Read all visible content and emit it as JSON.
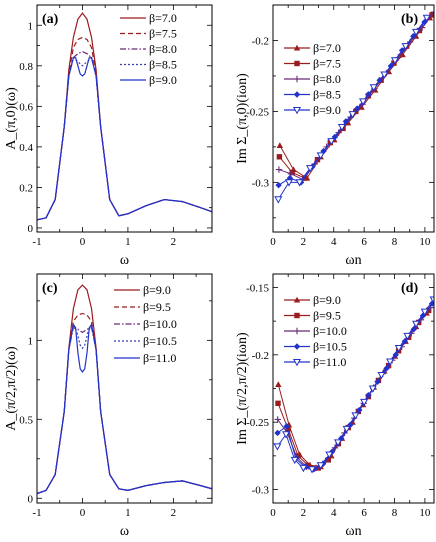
{
  "chart_data": [
    {
      "panel": "(a)",
      "type": "line",
      "xlabel": "ω",
      "ylabel": "A_(π,0)(ω)",
      "xlim": [
        -1,
        2.85
      ],
      "ylim": [
        -0.02,
        1.1
      ],
      "xticks": [
        -1,
        0,
        1,
        2
      ],
      "xtick_labels": [
        "-1",
        "0",
        "1",
        "2"
      ],
      "yticks": [
        0,
        0.2,
        0.4,
        0.6,
        0.8,
        1
      ],
      "ytick_labels": [
        "0",
        "0.2",
        "0.4",
        "0.6",
        "0.8",
        "1"
      ],
      "legend_position": "top-right",
      "series": [
        {
          "name": "β=7.0",
          "color": "#9b1c1c",
          "dash": "solid",
          "x": [
            -1,
            -0.8,
            -0.6,
            -0.4,
            -0.3,
            -0.2,
            -0.1,
            0,
            0.1,
            0.2,
            0.3,
            0.4,
            0.6,
            0.8,
            1,
            1.4,
            1.8,
            2.2,
            2.6,
            2.85
          ],
          "y": [
            0.04,
            0.05,
            0.14,
            0.5,
            0.78,
            0.94,
            1.03,
            1.06,
            1.03,
            0.94,
            0.78,
            0.5,
            0.14,
            0.06,
            0.07,
            0.11,
            0.14,
            0.13,
            0.1,
            0.08
          ]
        },
        {
          "name": "β=7.5",
          "color": "#9b1c1c",
          "dash": "dashed",
          "x": [
            -1,
            -0.8,
            -0.6,
            -0.4,
            -0.3,
            -0.2,
            -0.1,
            0,
            0.1,
            0.2,
            0.3,
            0.4,
            0.6,
            0.8,
            1,
            1.4,
            1.8,
            2.2,
            2.6,
            2.85
          ],
          "y": [
            0.04,
            0.05,
            0.14,
            0.5,
            0.76,
            0.89,
            0.93,
            0.94,
            0.93,
            0.89,
            0.76,
            0.5,
            0.14,
            0.06,
            0.07,
            0.11,
            0.14,
            0.13,
            0.1,
            0.08
          ]
        },
        {
          "name": "β=8.0",
          "color": "#6b2a78",
          "dash": "dashdot",
          "x": [
            -1,
            -0.8,
            -0.6,
            -0.4,
            -0.3,
            -0.2,
            -0.1,
            0,
            0.1,
            0.2,
            0.3,
            0.4,
            0.6,
            0.8,
            1,
            1.4,
            1.8,
            2.2,
            2.6,
            2.85
          ],
          "y": [
            0.04,
            0.05,
            0.14,
            0.5,
            0.75,
            0.84,
            0.86,
            0.87,
            0.86,
            0.84,
            0.75,
            0.5,
            0.14,
            0.06,
            0.07,
            0.11,
            0.14,
            0.13,
            0.1,
            0.08
          ]
        },
        {
          "name": "β=8.5",
          "color": "#3a3fb0",
          "dash": "dotted",
          "x": [
            -1,
            -0.8,
            -0.6,
            -0.4,
            -0.3,
            -0.2,
            -0.1,
            0,
            0.1,
            0.2,
            0.3,
            0.4,
            0.6,
            0.8,
            1,
            1.4,
            1.8,
            2.2,
            2.6,
            2.85
          ],
          "y": [
            0.04,
            0.05,
            0.14,
            0.5,
            0.75,
            0.84,
            0.82,
            0.8,
            0.82,
            0.84,
            0.75,
            0.5,
            0.14,
            0.06,
            0.07,
            0.11,
            0.14,
            0.13,
            0.1,
            0.08
          ]
        },
        {
          "name": "β=9.0",
          "color": "#2233cc",
          "dash": "solid",
          "x": [
            -1,
            -0.8,
            -0.6,
            -0.4,
            -0.3,
            -0.2,
            -0.15,
            -0.1,
            -0.05,
            0,
            0.05,
            0.1,
            0.15,
            0.2,
            0.3,
            0.4,
            0.6,
            0.8,
            1,
            1.4,
            1.8,
            2.2,
            2.6,
            2.85
          ],
          "y": [
            0.04,
            0.05,
            0.14,
            0.5,
            0.75,
            0.84,
            0.84,
            0.8,
            0.76,
            0.75,
            0.76,
            0.8,
            0.84,
            0.84,
            0.75,
            0.5,
            0.14,
            0.06,
            0.07,
            0.11,
            0.14,
            0.13,
            0.1,
            0.08
          ]
        }
      ]
    },
    {
      "panel": "(b)",
      "type": "line",
      "xlabel": "ωn",
      "ylabel": "Im Σ_(π,0)(iωn)",
      "xlim": [
        0,
        10.6
      ],
      "ylim": [
        -0.335,
        -0.175
      ],
      "xticks": [
        0,
        2,
        4,
        6,
        8,
        10
      ],
      "xtick_labels": [
        "0",
        "2",
        "4",
        "6",
        "8",
        "10"
      ],
      "yticks": [
        -0.3,
        -0.25,
        -0.2
      ],
      "ytick_labels": [
        "-0.3",
        "-0.25",
        "-0.2"
      ],
      "legend_position": "top-left",
      "series": [
        {
          "name": "β=7.0",
          "color": "#9b1c1c",
          "marker": "triangle-up",
          "x": [
            0.45,
            1.35,
            2.24,
            3.14,
            4.04,
            4.94,
            5.83,
            6.73,
            7.63,
            8.53,
            9.42,
            10.32
          ],
          "y": [
            -0.274,
            -0.291,
            -0.297,
            -0.282,
            -0.27,
            -0.258,
            -0.247,
            -0.235,
            -0.222,
            -0.21,
            -0.197,
            -0.184
          ]
        },
        {
          "name": "β=7.5",
          "color": "#9b1c1c",
          "marker": "square",
          "x": [
            0.42,
            1.26,
            2.09,
            2.93,
            3.77,
            4.61,
            5.45,
            6.28,
            7.12,
            7.96,
            8.8,
            9.64,
            10.47
          ],
          "y": [
            -0.282,
            -0.293,
            -0.297,
            -0.284,
            -0.272,
            -0.262,
            -0.25,
            -0.239,
            -0.228,
            -0.216,
            -0.204,
            -0.193,
            -0.182
          ]
        },
        {
          "name": "β=8.0",
          "color": "#6b2a78",
          "marker": "plus",
          "x": [
            0.39,
            1.18,
            1.96,
            2.75,
            3.53,
            4.32,
            5.11,
            5.89,
            6.68,
            7.46,
            8.25,
            9.03,
            9.82,
            10.6
          ],
          "y": [
            -0.291,
            -0.294,
            -0.298,
            -0.287,
            -0.275,
            -0.265,
            -0.254,
            -0.245,
            -0.234,
            -0.223,
            -0.212,
            -0.201,
            -0.191,
            -0.18
          ]
        },
        {
          "name": "β=8.5",
          "color": "#2233cc",
          "marker": "diamond",
          "x": [
            0.37,
            1.11,
            1.85,
            2.59,
            3.33,
            4.07,
            4.8,
            5.54,
            6.28,
            7.02,
            7.76,
            8.5,
            9.24,
            9.98
          ],
          "y": [
            -0.302,
            -0.297,
            -0.3,
            -0.289,
            -0.278,
            -0.268,
            -0.257,
            -0.248,
            -0.238,
            -0.228,
            -0.218,
            -0.207,
            -0.197,
            -0.187
          ]
        },
        {
          "name": "β=9.0",
          "color": "#2233cc",
          "marker": "triangle-down-open",
          "x": [
            0.35,
            1.05,
            1.75,
            2.44,
            3.14,
            3.84,
            4.54,
            5.24,
            5.93,
            6.63,
            7.33,
            8.03,
            8.73,
            9.42,
            10.12
          ],
          "y": [
            -0.312,
            -0.3,
            -0.3,
            -0.29,
            -0.281,
            -0.271,
            -0.261,
            -0.252,
            -0.243,
            -0.233,
            -0.224,
            -0.214,
            -0.204,
            -0.194,
            -0.184
          ]
        }
      ]
    },
    {
      "panel": "(c)",
      "type": "line",
      "xlabel": "ω",
      "ylabel": "A_(π/2,π/2)(ω)",
      "xlim": [
        -1,
        2.85
      ],
      "ylim": [
        -0.03,
        1.42
      ],
      "xticks": [
        -1,
        0,
        1,
        2
      ],
      "xtick_labels": [
        "-1",
        "0",
        "1",
        "2"
      ],
      "yticks": [
        0,
        0.5,
        1
      ],
      "ytick_labels": [
        "0",
        "0.5",
        "1"
      ],
      "legend_position": "top-right",
      "series": [
        {
          "name": "β=9.0",
          "color": "#9b1c1c",
          "dash": "solid",
          "x": [
            -1,
            -0.8,
            -0.6,
            -0.4,
            -0.3,
            -0.2,
            -0.1,
            0,
            0.1,
            0.2,
            0.3,
            0.4,
            0.6,
            0.8,
            1,
            1.4,
            1.8,
            2.2,
            2.6,
            2.85
          ],
          "y": [
            0.03,
            0.05,
            0.15,
            0.55,
            0.95,
            1.2,
            1.32,
            1.35,
            1.32,
            1.2,
            0.95,
            0.55,
            0.15,
            0.06,
            0.05,
            0.08,
            0.1,
            0.11,
            0.08,
            0.06
          ]
        },
        {
          "name": "β=9.5",
          "color": "#9b1c1c",
          "dash": "dashed",
          "x": [
            -1,
            -0.8,
            -0.6,
            -0.4,
            -0.3,
            -0.2,
            -0.1,
            0,
            0.1,
            0.2,
            0.3,
            0.4,
            0.6,
            0.8,
            1,
            1.4,
            1.8,
            2.2,
            2.6,
            2.85
          ],
          "y": [
            0.03,
            0.05,
            0.15,
            0.55,
            0.94,
            1.12,
            1.16,
            1.17,
            1.16,
            1.12,
            0.94,
            0.55,
            0.15,
            0.06,
            0.05,
            0.08,
            0.1,
            0.11,
            0.08,
            0.06
          ]
        },
        {
          "name": "β=10.0",
          "color": "#6b2a78",
          "dash": "dashdot",
          "x": [
            -1,
            -0.8,
            -0.6,
            -0.4,
            -0.3,
            -0.2,
            -0.1,
            0,
            0.1,
            0.2,
            0.3,
            0.4,
            0.6,
            0.8,
            1,
            1.4,
            1.8,
            2.2,
            2.6,
            2.85
          ],
          "y": [
            0.03,
            0.05,
            0.15,
            0.55,
            0.94,
            1.08,
            1.07,
            1.05,
            1.07,
            1.08,
            0.94,
            0.55,
            0.15,
            0.06,
            0.05,
            0.08,
            0.1,
            0.11,
            0.08,
            0.06
          ]
        },
        {
          "name": "β=10.5",
          "color": "#3a3fb0",
          "dash": "dotted",
          "x": [
            -1,
            -0.8,
            -0.6,
            -0.4,
            -0.3,
            -0.2,
            -0.12,
            -0.05,
            0,
            0.05,
            0.12,
            0.2,
            0.3,
            0.4,
            0.6,
            0.8,
            1,
            1.4,
            1.8,
            2.2,
            2.6,
            2.85
          ],
          "y": [
            0.03,
            0.05,
            0.15,
            0.55,
            0.94,
            1.1,
            1.05,
            0.97,
            0.95,
            0.97,
            1.05,
            1.1,
            0.94,
            0.55,
            0.15,
            0.06,
            0.05,
            0.08,
            0.1,
            0.11,
            0.08,
            0.06
          ]
        },
        {
          "name": "β=11.0",
          "color": "#2233cc",
          "dash": "solid",
          "x": [
            -1,
            -0.8,
            -0.6,
            -0.4,
            -0.3,
            -0.2,
            -0.15,
            -0.1,
            -0.05,
            0,
            0.05,
            0.1,
            0.15,
            0.2,
            0.3,
            0.4,
            0.6,
            0.8,
            1,
            1.4,
            1.8,
            2.2,
            2.6,
            2.85
          ],
          "y": [
            0.03,
            0.05,
            0.15,
            0.55,
            0.94,
            1.1,
            1.08,
            0.92,
            0.82,
            0.8,
            0.82,
            0.92,
            1.08,
            1.1,
            0.94,
            0.55,
            0.15,
            0.06,
            0.05,
            0.08,
            0.1,
            0.11,
            0.08,
            0.06
          ]
        }
      ]
    },
    {
      "panel": "(d)",
      "type": "line",
      "xlabel": "ωn",
      "ylabel": "Im Σ_(π/2,π/2)(iωn)",
      "xlim": [
        0,
        10.6
      ],
      "ylim": [
        -0.31,
        -0.14
      ],
      "xticks": [
        0,
        2,
        4,
        6,
        8,
        10
      ],
      "xtick_labels": [
        "0",
        "2",
        "4",
        "6",
        "8",
        "10"
      ],
      "yticks": [
        -0.3,
        -0.25,
        -0.2,
        -0.15
      ],
      "ytick_labels": [
        "-0.3",
        "-0.25",
        "-0.2",
        "-0.15"
      ],
      "legend_position": "top-left",
      "series": [
        {
          "name": "β=9.0",
          "color": "#9b1c1c",
          "marker": "triangle-up",
          "x": [
            0.35,
            1.05,
            1.75,
            2.44,
            3.14,
            3.84,
            4.54,
            5.24,
            5.93,
            6.63,
            7.33,
            8.03,
            8.73,
            9.42,
            10.12
          ],
          "y": [
            -0.222,
            -0.252,
            -0.274,
            -0.282,
            -0.283,
            -0.275,
            -0.262,
            -0.25,
            -0.237,
            -0.224,
            -0.212,
            -0.201,
            -0.19,
            -0.179,
            -0.169
          ]
        },
        {
          "name": "β=9.5",
          "color": "#9b1c1c",
          "marker": "square",
          "x": [
            0.33,
            0.99,
            1.65,
            2.31,
            2.98,
            3.64,
            4.3,
            4.96,
            5.62,
            6.28,
            6.94,
            7.61,
            8.27,
            8.93,
            9.59,
            10.25
          ],
          "y": [
            -0.236,
            -0.255,
            -0.275,
            -0.282,
            -0.284,
            -0.278,
            -0.266,
            -0.254,
            -0.242,
            -0.231,
            -0.219,
            -0.208,
            -0.197,
            -0.187,
            -0.176,
            -0.167
          ]
        },
        {
          "name": "β=10.0",
          "color": "#6b2a78",
          "marker": "plus",
          "x": [
            0.31,
            0.94,
            1.57,
            2.2,
            2.83,
            3.46,
            4.08,
            4.71,
            5.34,
            5.97,
            6.6,
            7.23,
            7.85,
            8.48,
            9.11,
            9.74,
            10.37
          ],
          "y": [
            -0.248,
            -0.258,
            -0.276,
            -0.283,
            -0.284,
            -0.279,
            -0.269,
            -0.258,
            -0.247,
            -0.236,
            -0.225,
            -0.214,
            -0.204,
            -0.194,
            -0.184,
            -0.174,
            -0.165
          ]
        },
        {
          "name": "β=10.5",
          "color": "#2233cc",
          "marker": "diamond",
          "x": [
            0.3,
            0.9,
            1.5,
            2.09,
            2.69,
            3.29,
            3.89,
            4.49,
            5.09,
            5.68,
            6.28,
            6.88,
            7.48,
            8.08,
            8.68,
            9.27,
            9.87,
            10.47
          ],
          "y": [
            -0.258,
            -0.253,
            -0.277,
            -0.283,
            -0.285,
            -0.281,
            -0.272,
            -0.262,
            -0.252,
            -0.241,
            -0.23,
            -0.22,
            -0.21,
            -0.2,
            -0.19,
            -0.181,
            -0.171,
            -0.162
          ]
        },
        {
          "name": "β=11.0",
          "color": "#2233cc",
          "marker": "triangle-down-open",
          "x": [
            0.29,
            0.86,
            1.43,
            2.0,
            2.57,
            3.14,
            3.71,
            4.28,
            4.85,
            5.43,
            6.0,
            6.57,
            7.14,
            7.71,
            8.28,
            8.85,
            9.42,
            9.99,
            10.57
          ],
          "y": [
            -0.268,
            -0.259,
            -0.278,
            -0.284,
            -0.285,
            -0.282,
            -0.274,
            -0.265,
            -0.255,
            -0.245,
            -0.235,
            -0.225,
            -0.215,
            -0.205,
            -0.195,
            -0.186,
            -0.177,
            -0.168,
            -0.159
          ]
        }
      ]
    }
  ]
}
